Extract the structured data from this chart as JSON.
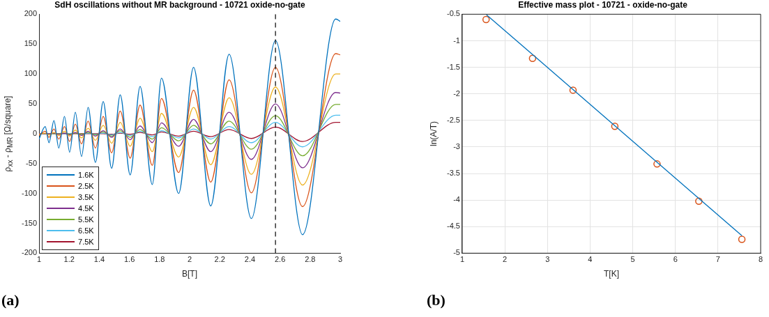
{
  "chart_data": [
    {
      "type": "line",
      "title": "SdH oscillations without MR background - 10721 oxide-no-gate",
      "xlabel": "B[T]",
      "ylabel": "ρ$_{xx}$ - ρ$_{MR}$ [Ω/square]",
      "annotations": [
        "(a)"
      ],
      "x": [
        1.0,
        1.041,
        1.066,
        1.099,
        1.131,
        1.169,
        1.203,
        1.241,
        1.282,
        1.326,
        1.374,
        1.426,
        1.482,
        1.539,
        1.605,
        1.671,
        1.752,
        1.813,
        1.927,
        2.026,
        2.14,
        2.262,
        2.41,
        2.57,
        2.75,
        2.97,
        3.0
      ],
      "series": [
        {
          "name": "1.6K",
          "color": "#0072bd",
          "values": [
            -9,
            12,
            -15,
            22,
            -24,
            29,
            -31,
            36,
            -38,
            44,
            -48,
            54,
            -58,
            65,
            -69,
            79,
            -85,
            93,
            -100,
            111,
            -121,
            133,
            -142,
            156,
            -169,
            192,
            188
          ]
        },
        {
          "name": "2.5K",
          "color": "#d95319",
          "values": [
            -3,
            4,
            -6,
            8,
            -9,
            12,
            -13,
            16,
            -17,
            21,
            -24,
            29,
            -32,
            38,
            -41,
            48,
            -53,
            59,
            -65,
            73,
            -81,
            90,
            -99,
            111,
            -122,
            134,
            132
          ]
        },
        {
          "name": "3.5K",
          "color": "#edb120",
          "values": [
            -1,
            1,
            -2,
            2,
            -3,
            4,
            -4,
            6,
            -7,
            9,
            -11,
            14,
            -16,
            19,
            -21,
            26,
            -30,
            34,
            -39,
            44,
            -52,
            60,
            -68,
            78,
            -86,
            100,
            100
          ]
        },
        {
          "name": "4.5K",
          "color": "#7e2f8e",
          "values": [
            0,
            0,
            0,
            1,
            -1,
            1,
            -2,
            2,
            -3,
            4,
            -4,
            5,
            -6,
            8,
            -10,
            13,
            -15,
            18,
            -21,
            24,
            -30,
            36,
            -43,
            50,
            -57,
            69,
            68
          ]
        },
        {
          "name": "5.5K",
          "color": "#77ac30",
          "values": [
            0,
            0,
            0,
            0,
            0,
            1,
            -1,
            1,
            -1,
            2,
            -2,
            3,
            -4,
            5,
            -6,
            7,
            -9,
            10,
            -12,
            14,
            -17,
            21,
            -26,
            30,
            -37,
            49,
            49
          ]
        },
        {
          "name": "6.5K",
          "color": "#4dbeee",
          "values": [
            0,
            0,
            0,
            0,
            0,
            0,
            0,
            1,
            -1,
            1,
            -1,
            1,
            -2,
            2,
            -3,
            4,
            -5,
            5,
            -7,
            8,
            -9,
            12,
            -15,
            19,
            -22,
            31,
            31
          ]
        },
        {
          "name": "7.5K",
          "color": "#a2142f",
          "values": [
            0,
            0,
            0,
            0,
            0,
            0,
            0,
            0,
            0,
            0,
            0,
            0,
            -1,
            1,
            -1,
            2,
            -2,
            3,
            -4,
            4,
            -5,
            7,
            -8,
            11,
            -13,
            19,
            19
          ]
        }
      ],
      "xlim": [
        1,
        3
      ],
      "xticks": [
        1,
        1.2,
        1.4,
        1.6,
        1.8,
        2,
        2.2,
        2.4,
        2.6,
        2.8,
        3
      ],
      "ylim": [
        -200,
        200
      ],
      "yticks": [
        -200,
        -150,
        -100,
        -50,
        0,
        50,
        100,
        150,
        200
      ],
      "ref_lines": [
        {
          "axis": "x",
          "value": 2.57,
          "color": "#000000",
          "line_style": "dashed"
        }
      ],
      "legend": "bottom left",
      "grid": false,
      "marker": "none",
      "line_style": "solid"
    },
    {
      "type": "scatter",
      "title": "Effective mass plot - 10721 - oxide-no-gate",
      "xlabel": "T[K]",
      "ylabel": "ln(A/T)",
      "annotations": [
        "(b)"
      ],
      "series": [
        {
          "type": "line",
          "color": "#0072bd",
          "marker": "none",
          "x": [
            1.57,
            7.56
          ],
          "values": [
            -0.51,
            -4.67
          ]
        },
        {
          "type": "scatter",
          "color": "#d95319",
          "marker": "circle",
          "x": [
            1.56,
            2.65,
            3.6,
            4.58,
            5.57,
            6.55,
            7.56
          ],
          "values": [
            -0.6,
            -1.33,
            -1.93,
            -2.61,
            -3.32,
            -4.02,
            -4.74
          ]
        }
      ],
      "xlim": [
        1,
        8
      ],
      "xticks": [
        1,
        2,
        3,
        4,
        5,
        6,
        7,
        8
      ],
      "ylim": [
        -5,
        -0.5
      ],
      "yticks": [
        -5,
        -4.5,
        -4,
        -3.5,
        -3,
        -2.5,
        -2,
        -1.5,
        -1,
        -0.5
      ],
      "legend": false,
      "grid": true
    }
  ]
}
